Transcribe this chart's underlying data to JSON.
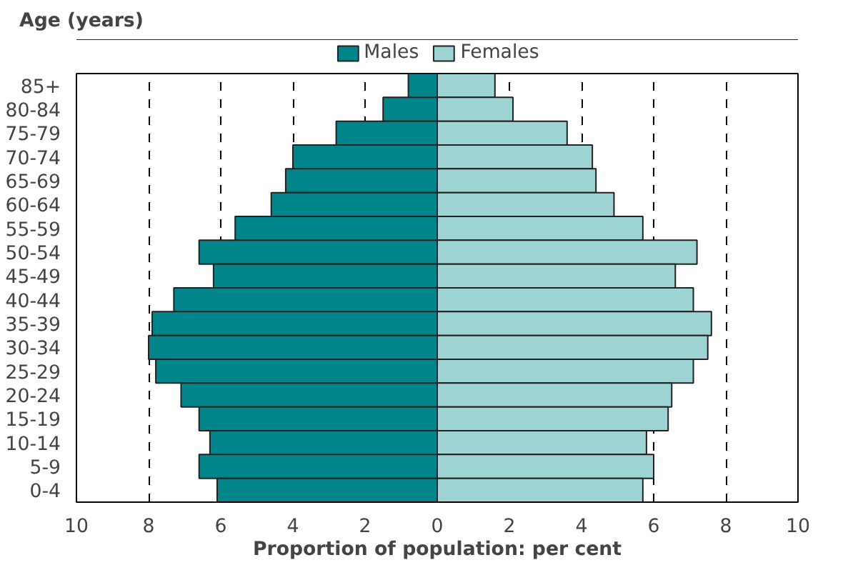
{
  "chart_data": {
    "type": "bar",
    "orientation": "horizontal",
    "stacked": true,
    "ylabel": "Age (years)",
    "xlabel": "Proportion of population: per cent",
    "categories": [
      "85+",
      "80-84",
      "75-79",
      "70-74",
      "65-69",
      "60-64",
      "55-59",
      "50-54",
      "45-49",
      "40-44",
      "35-39",
      "30-34",
      "25-29",
      "20-24",
      "15-19",
      "10-14",
      "5-9",
      "0-4"
    ],
    "series": [
      {
        "name": "Males",
        "color": "#00868a",
        "values": [
          -0.8,
          -1.5,
          -2.8,
          -4.0,
          -4.2,
          -4.6,
          -5.6,
          -6.6,
          -6.2,
          -7.3,
          -7.9,
          -8.0,
          -7.8,
          -7.1,
          -6.6,
          -6.3,
          -6.6,
          -6.1
        ]
      },
      {
        "name": "Females",
        "color": "#9dd3d3",
        "values": [
          1.6,
          2.1,
          3.6,
          4.3,
          4.4,
          4.9,
          5.7,
          7.2,
          6.6,
          7.1,
          7.6,
          7.5,
          7.1,
          6.5,
          6.4,
          5.8,
          6.0,
          5.7
        ]
      }
    ],
    "xlim": [
      -10,
      10
    ],
    "xticks": [
      {
        "value": -10,
        "label": "10"
      },
      {
        "value": -8,
        "label": "8"
      },
      {
        "value": -6,
        "label": "6"
      },
      {
        "value": -4,
        "label": "4"
      },
      {
        "value": -2,
        "label": "2"
      },
      0,
      2,
      4,
      6,
      8,
      10
    ],
    "grid": "x",
    "legend": "top"
  }
}
